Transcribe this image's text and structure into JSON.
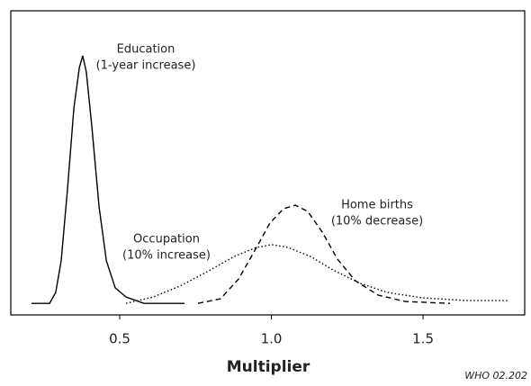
{
  "chart_data": {
    "type": "line",
    "xlabel": "Multiplier",
    "credit": "WHO 02.202",
    "xlim": [
      0.141,
      1.835
    ],
    "ylim": [
      0,
      100
    ],
    "xticks": [
      0.5,
      {
        "value": 1,
        "label": "1.0"
      },
      1.5
    ],
    "series": [
      {
        "name": "Education",
        "note": "(1-year increase)",
        "color": "#000000",
        "dash": "solid",
        "x": [
          0.209,
          0.269,
          0.289,
          0.307,
          0.328,
          0.349,
          0.367,
          0.378,
          0.39,
          0.408,
          0.432,
          0.456,
          0.485,
          0.521,
          0.58,
          0.714
        ],
        "values": [
          3.8,
          3.8,
          7.4,
          17.8,
          41.4,
          68.0,
          81.4,
          85.2,
          79.9,
          62.1,
          35.5,
          17.8,
          8.9,
          5.9,
          3.8,
          3.8
        ]
      },
      {
        "name": "Occupation",
        "note": "(10% increase)",
        "color": "#000000",
        "dash": "dotted",
        "x": [
          0.521,
          0.61,
          0.699,
          0.788,
          0.877,
          0.951,
          1.002,
          1.055,
          1.129,
          1.203,
          1.292,
          1.381,
          1.5,
          1.648,
          1.782
        ],
        "values": [
          3.8,
          5.9,
          9.5,
          14.2,
          19.2,
          22.2,
          23.1,
          22.2,
          19.2,
          14.8,
          10.4,
          7.4,
          5.6,
          4.7,
          4.7
        ]
      },
      {
        "name": "Home births",
        "note": "(10% decrease)",
        "color": "#000000",
        "dash": "dashed",
        "x": [
          0.758,
          0.832,
          0.892,
          0.951,
          0.995,
          1.04,
          1.079,
          1.12,
          1.168,
          1.218,
          1.277,
          1.352,
          1.441,
          1.589
        ],
        "values": [
          3.8,
          5.3,
          11.8,
          22.2,
          30.2,
          34.9,
          36.1,
          34.0,
          27.2,
          18.3,
          11.2,
          6.5,
          4.4,
          3.8
        ]
      }
    ]
  }
}
